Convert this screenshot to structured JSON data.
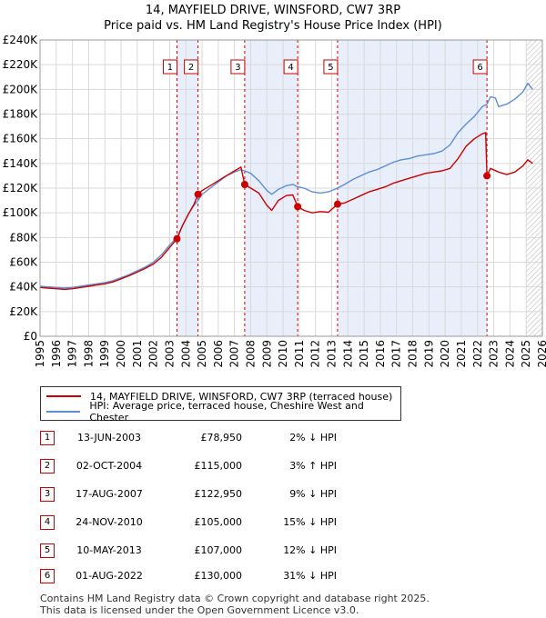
{
  "title_line1": "14, MAYFIELD DRIVE, WINSFORD, CW7 3RP",
  "title_line2": "Price paid vs. HM Land Registry's House Price Index (HPI)",
  "chart_data": {
    "type": "line",
    "title": "14, MAYFIELD DRIVE, WINSFORD, CW7 3RP — Price paid vs. HM Land Registry's House Price Index (HPI)",
    "xlabel": "",
    "ylabel": "",
    "xlim": [
      1995,
      2026
    ],
    "ylim": [
      0,
      240000
    ],
    "x_ticks": [
      1995,
      1996,
      1997,
      1998,
      1999,
      2000,
      2001,
      2002,
      2003,
      2004,
      2005,
      2006,
      2007,
      2008,
      2009,
      2010,
      2011,
      2012,
      2013,
      2014,
      2015,
      2016,
      2017,
      2018,
      2019,
      2020,
      2021,
      2022,
      2023,
      2024,
      2025,
      2026
    ],
    "y_ticks": [
      0,
      20000,
      40000,
      60000,
      80000,
      100000,
      120000,
      140000,
      160000,
      180000,
      200000,
      220000,
      240000
    ],
    "y_tick_labels": [
      "£0",
      "£20K",
      "£40K",
      "£60K",
      "£80K",
      "£100K",
      "£120K",
      "£140K",
      "£160K",
      "£180K",
      "£200K",
      "£220K",
      "£240K"
    ],
    "series": [
      {
        "name": "14, MAYFIELD DRIVE, WINSFORD, CW7 3RP (terraced house)",
        "color": "#cc0000",
        "points": [
          [
            1995.0,
            39500
          ],
          [
            1995.5,
            39000
          ],
          [
            1996.0,
            38500
          ],
          [
            1996.5,
            38000
          ],
          [
            1997.0,
            38500
          ],
          [
            1997.5,
            39500
          ],
          [
            1998.0,
            40500
          ],
          [
            1998.5,
            41500
          ],
          [
            1999.0,
            42500
          ],
          [
            1999.5,
            44000
          ],
          [
            2000.0,
            46500
          ],
          [
            2000.5,
            49000
          ],
          [
            2001.0,
            52000
          ],
          [
            2001.5,
            55000
          ],
          [
            2002.0,
            58500
          ],
          [
            2002.5,
            64000
          ],
          [
            2003.0,
            72000
          ],
          [
            2003.45,
            78950
          ],
          [
            2003.8,
            90000
          ],
          [
            2004.2,
            100000
          ],
          [
            2004.5,
            107000
          ],
          [
            2004.75,
            115000
          ],
          [
            2005.0,
            118000
          ],
          [
            2005.5,
            122000
          ],
          [
            2006.0,
            126000
          ],
          [
            2006.5,
            130000
          ],
          [
            2007.0,
            134000
          ],
          [
            2007.4,
            137000
          ],
          [
            2007.63,
            122950
          ],
          [
            2008.0,
            120000
          ],
          [
            2008.5,
            116000
          ],
          [
            2009.0,
            106000
          ],
          [
            2009.3,
            102000
          ],
          [
            2009.7,
            110000
          ],
          [
            2010.2,
            114000
          ],
          [
            2010.6,
            114500
          ],
          [
            2010.9,
            105000
          ],
          [
            2011.3,
            102000
          ],
          [
            2011.8,
            100000
          ],
          [
            2012.3,
            101000
          ],
          [
            2012.8,
            100500
          ],
          [
            2013.36,
            107000
          ],
          [
            2013.8,
            108000
          ],
          [
            2014.3,
            111000
          ],
          [
            2014.8,
            114000
          ],
          [
            2015.3,
            117000
          ],
          [
            2015.8,
            119000
          ],
          [
            2016.3,
            121000
          ],
          [
            2016.8,
            124000
          ],
          [
            2017.3,
            126000
          ],
          [
            2017.8,
            128000
          ],
          [
            2018.3,
            130000
          ],
          [
            2018.8,
            132000
          ],
          [
            2019.3,
            133000
          ],
          [
            2019.8,
            134000
          ],
          [
            2020.3,
            136000
          ],
          [
            2020.8,
            144000
          ],
          [
            2021.3,
            154000
          ],
          [
            2021.8,
            160000
          ],
          [
            2022.3,
            164000
          ],
          [
            2022.5,
            165000
          ],
          [
            2022.58,
            130000
          ],
          [
            2022.8,
            136000
          ],
          [
            2023.3,
            133000
          ],
          [
            2023.8,
            131000
          ],
          [
            2024.3,
            133000
          ],
          [
            2024.8,
            138000
          ],
          [
            2025.1,
            143000
          ],
          [
            2025.4,
            140000
          ]
        ]
      },
      {
        "name": "HPI: Average price, terraced house, Cheshire West and Chester",
        "color": "#5b8fd6",
        "points": [
          [
            1995.0,
            40500
          ],
          [
            1995.5,
            40000
          ],
          [
            1996.0,
            39500
          ],
          [
            1996.5,
            39000
          ],
          [
            1997.0,
            39500
          ],
          [
            1997.5,
            40500
          ],
          [
            1998.0,
            41500
          ],
          [
            1998.5,
            42500
          ],
          [
            1999.0,
            43500
          ],
          [
            1999.5,
            45000
          ],
          [
            2000.0,
            47500
          ],
          [
            2000.5,
            50000
          ],
          [
            2001.0,
            53000
          ],
          [
            2001.5,
            56000
          ],
          [
            2002.0,
            60000
          ],
          [
            2002.5,
            66000
          ],
          [
            2003.0,
            74000
          ],
          [
            2003.45,
            80000
          ],
          [
            2003.8,
            90000
          ],
          [
            2004.2,
            100000
          ],
          [
            2004.5,
            106000
          ],
          [
            2004.75,
            110000
          ],
          [
            2005.0,
            115000
          ],
          [
            2005.5,
            120000
          ],
          [
            2006.0,
            125000
          ],
          [
            2006.5,
            130000
          ],
          [
            2007.0,
            133000
          ],
          [
            2007.4,
            135000
          ],
          [
            2007.63,
            134000
          ],
          [
            2008.0,
            132000
          ],
          [
            2008.5,
            126000
          ],
          [
            2009.0,
            118000
          ],
          [
            2009.3,
            115000
          ],
          [
            2009.7,
            119000
          ],
          [
            2010.2,
            122000
          ],
          [
            2010.6,
            123000
          ],
          [
            2010.9,
            121000
          ],
          [
            2011.3,
            120000
          ],
          [
            2011.8,
            117000
          ],
          [
            2012.3,
            116000
          ],
          [
            2012.8,
            117000
          ],
          [
            2013.36,
            120000
          ],
          [
            2013.8,
            123000
          ],
          [
            2014.3,
            127000
          ],
          [
            2014.8,
            130000
          ],
          [
            2015.3,
            133000
          ],
          [
            2015.8,
            135000
          ],
          [
            2016.3,
            138000
          ],
          [
            2016.8,
            141000
          ],
          [
            2017.3,
            143000
          ],
          [
            2017.8,
            144000
          ],
          [
            2018.3,
            146000
          ],
          [
            2018.8,
            147000
          ],
          [
            2019.3,
            148000
          ],
          [
            2019.8,
            150000
          ],
          [
            2020.3,
            155000
          ],
          [
            2020.8,
            165000
          ],
          [
            2021.3,
            172000
          ],
          [
            2021.8,
            178000
          ],
          [
            2022.3,
            186000
          ],
          [
            2022.58,
            188000
          ],
          [
            2022.8,
            194000
          ],
          [
            2023.1,
            193000
          ],
          [
            2023.3,
            186000
          ],
          [
            2023.8,
            188000
          ],
          [
            2024.3,
            192000
          ],
          [
            2024.8,
            198000
          ],
          [
            2025.1,
            205000
          ],
          [
            2025.4,
            200000
          ]
        ]
      }
    ],
    "sales": [
      {
        "label": "1",
        "x": 2003.45,
        "price": 78950
      },
      {
        "label": "2",
        "x": 2004.75,
        "price": 115000
      },
      {
        "label": "3",
        "x": 2007.63,
        "price": 122950
      },
      {
        "label": "4",
        "x": 2010.9,
        "price": 105000
      },
      {
        "label": "5",
        "x": 2013.36,
        "price": 107000
      },
      {
        "label": "6",
        "x": 2022.58,
        "price": 130000
      }
    ],
    "shaded_periods": [
      [
        2003.45,
        2004.75
      ],
      [
        2007.63,
        2010.9
      ],
      [
        2013.36,
        2022.58
      ]
    ],
    "future_hatch_start": 2025.0
  },
  "legend": {
    "red_label": "14, MAYFIELD DRIVE, WINSFORD, CW7 3RP (terraced house)",
    "blue_label": "HPI: Average price, terraced house, Cheshire West and Chester"
  },
  "sales_table": [
    {
      "num": "1",
      "date": "13-JUN-2003",
      "price": "£78,950",
      "hpi": "2% ↓ HPI"
    },
    {
      "num": "2",
      "date": "02-OCT-2004",
      "price": "£115,000",
      "hpi": "3% ↑ HPI"
    },
    {
      "num": "3",
      "date": "17-AUG-2007",
      "price": "£122,950",
      "hpi": "9% ↓ HPI"
    },
    {
      "num": "4",
      "date": "24-NOV-2010",
      "price": "£105,000",
      "hpi": "15% ↓ HPI"
    },
    {
      "num": "5",
      "date": "10-MAY-2013",
      "price": "£107,000",
      "hpi": "12% ↓ HPI"
    },
    {
      "num": "6",
      "date": "01-AUG-2022",
      "price": "£130,000",
      "hpi": "31% ↓ HPI"
    }
  ],
  "footer_line1": "Contains HM Land Registry data © Crown copyright and database right 2025.",
  "footer_line2": "This data is licensed under the Open Government Licence v3.0."
}
